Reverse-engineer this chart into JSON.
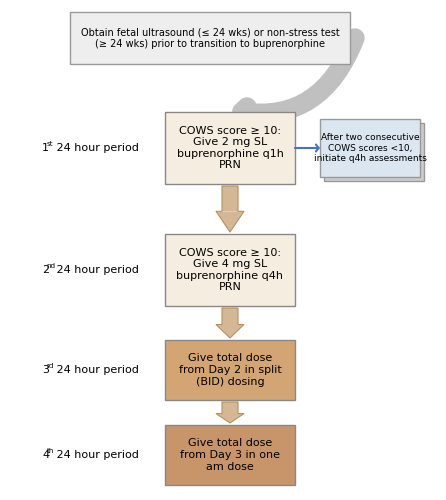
{
  "title_text": "Obtain fetal ultrasound (≤ 24 wks) or non-stress test\n(≥ 24 wks) prior to transition to buprenorphine",
  "box1_text": "COWS score ≥ 10:\nGive 2 mg SL\nbuprenorphine q1h\nPRN",
  "box2_text": "COWS score ≥ 10:\nGive 4 mg SL\nbuprenorphine q4h\nPRN",
  "box3_text": "Give total dose\nfrom Day 2 in split\n(BID) dosing",
  "box4_text": "Give total dose\nfrom Day 3 in one\nam dose",
  "side_box_text": "After two consecutive\nCOWS scores <10,\ninitiate q4h assessments",
  "label1": "1ˢᵗ 24 hour period",
  "label2": "2ⁿᵈ 24 hour period",
  "label3": "3ʳᵈ 24 hour period",
  "label4": "4ᵗʰ 24 hour period",
  "box1_color": "#f5ede0",
  "box2_color": "#f5ede0",
  "box3_color": "#d4a574",
  "box4_color": "#c8956a",
  "side_box_color": "#dce6f0",
  "arrow_main_color": "#d4b896",
  "arrow_outline_color": "#b89060",
  "top_arrow_color": "#c0c0c0",
  "side_arrow_color": "#4472c4",
  "background_color": "#ffffff",
  "title_box_color": "#eeeeee",
  "title_box_edge": "#999999",
  "main_box_edge": "#888888",
  "side_box_edge": "#999999"
}
